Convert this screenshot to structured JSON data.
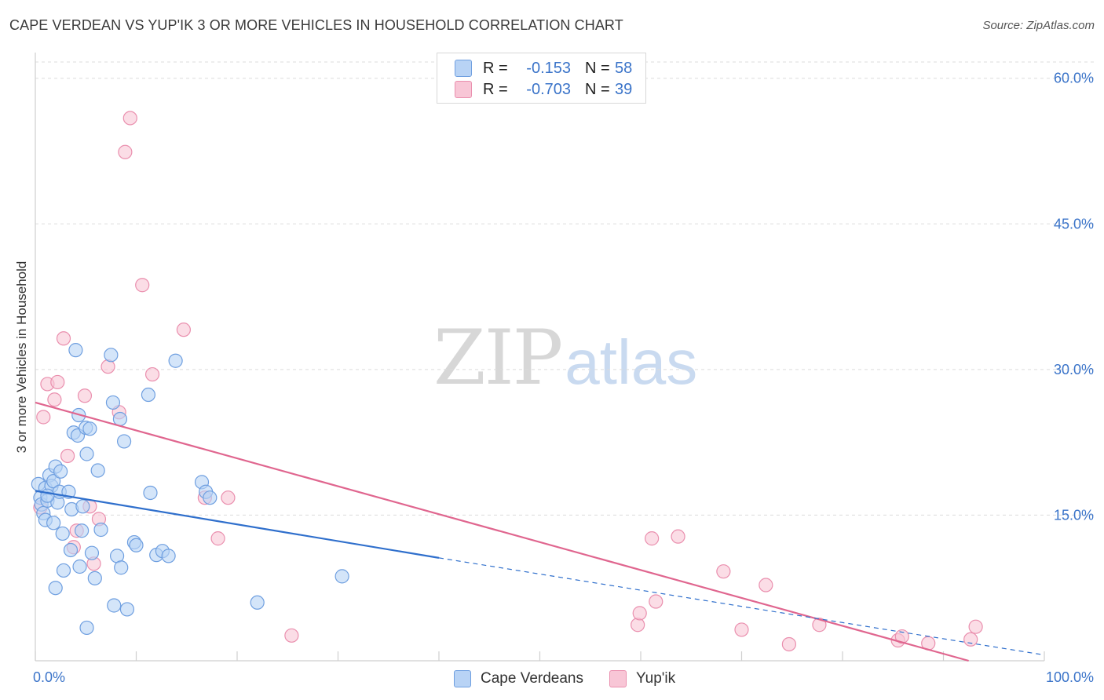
{
  "header": {
    "title": "CAPE VERDEAN VS YUP'IK 3 OR MORE VEHICLES IN HOUSEHOLD CORRELATION CHART",
    "source": "Source: ZipAtlas.com"
  },
  "watermark": {
    "zip": "ZIP",
    "atlas": "atlas"
  },
  "legend": {
    "items": [
      {
        "r_label": "R =",
        "r_value": "-0.153",
        "n_label": "N =",
        "n_value": "58"
      },
      {
        "r_label": "R =",
        "r_value": "-0.703",
        "n_label": "N =",
        "n_value": "39"
      }
    ]
  },
  "bottom_legend": {
    "series1": "Cape Verdeans",
    "series2": "Yup'ik"
  },
  "colors": {
    "blue_fill": "#b8d3f5",
    "blue_stroke": "#6f9fe0",
    "blue_line": "#2f6fcc",
    "pink_fill": "#f8c6d6",
    "pink_stroke": "#ea8fae",
    "pink_line": "#e0668f",
    "grid": "#dcdcdc",
    "tick_text": "#3b74c9"
  },
  "chart_data": {
    "type": "scatter",
    "title": "CAPE VERDEAN VS YUP'IK 3 OR MORE VEHICLES IN HOUSEHOLD CORRELATION CHART",
    "xlabel": "",
    "ylabel": "3 or more Vehicles in Household",
    "xlim": [
      0,
      100
    ],
    "ylim": [
      0,
      62
    ],
    "x_tick_labels": [
      "0.0%",
      "100.0%"
    ],
    "y_ticks": [
      15,
      30,
      45,
      60
    ],
    "y_tick_labels": [
      "15.0%",
      "30.0%",
      "45.0%",
      "60.0%"
    ],
    "grid": true,
    "legend_position": "top-center",
    "series": [
      {
        "name": "Cape Verdeans",
        "r": -0.153,
        "n": 58,
        "trend": {
          "x0": 0,
          "y0": 17.5,
          "x1": 40,
          "y1": 10.6,
          "dash_to_x": 100,
          "dash_to_y": 0.6
        },
        "points": [
          [
            0.3,
            18.2
          ],
          [
            0.5,
            16.8
          ],
          [
            0.6,
            16.1
          ],
          [
            0.8,
            15.2
          ],
          [
            1.0,
            14.5
          ],
          [
            1.0,
            17.8
          ],
          [
            1.2,
            16.5
          ],
          [
            1.4,
            19.1
          ],
          [
            1.6,
            18.0
          ],
          [
            1.8,
            14.2
          ],
          [
            1.8,
            18.5
          ],
          [
            2.0,
            20.0
          ],
          [
            2.2,
            16.3
          ],
          [
            2.4,
            17.4
          ],
          [
            2.5,
            19.5
          ],
          [
            2.7,
            13.1
          ],
          [
            2.8,
            9.3
          ],
          [
            3.3,
            17.4
          ],
          [
            3.5,
            11.4
          ],
          [
            3.6,
            15.6
          ],
          [
            3.8,
            23.5
          ],
          [
            4.0,
            32.0
          ],
          [
            4.2,
            23.2
          ],
          [
            4.3,
            25.3
          ],
          [
            4.4,
            9.7
          ],
          [
            4.6,
            13.4
          ],
          [
            4.7,
            15.9
          ],
          [
            5.0,
            24.0
          ],
          [
            5.1,
            21.3
          ],
          [
            5.4,
            23.9
          ],
          [
            5.6,
            11.1
          ],
          [
            5.9,
            8.5
          ],
          [
            6.2,
            19.6
          ],
          [
            6.5,
            13.5
          ],
          [
            7.5,
            31.5
          ],
          [
            7.7,
            26.6
          ],
          [
            7.8,
            5.7
          ],
          [
            8.1,
            10.8
          ],
          [
            8.4,
            24.9
          ],
          [
            8.5,
            9.6
          ],
          [
            8.8,
            22.6
          ],
          [
            9.1,
            5.3
          ],
          [
            9.8,
            12.2
          ],
          [
            10.0,
            11.9
          ],
          [
            11.2,
            27.4
          ],
          [
            11.4,
            17.3
          ],
          [
            12.0,
            10.9
          ],
          [
            12.6,
            11.3
          ],
          [
            13.2,
            10.8
          ],
          [
            13.9,
            30.9
          ],
          [
            16.5,
            18.4
          ],
          [
            16.9,
            17.4
          ],
          [
            17.3,
            16.8
          ],
          [
            22.0,
            6.0
          ],
          [
            30.4,
            8.7
          ],
          [
            2.0,
            7.5
          ],
          [
            5.1,
            3.4
          ],
          [
            1.2,
            17.0
          ]
        ]
      },
      {
        "name": "Yup'ik",
        "r": -0.703,
        "n": 39,
        "trend": {
          "x0": 0,
          "y0": 26.6,
          "x1": 92.5,
          "y1": 0
        },
        "points": [
          [
            0.5,
            15.8
          ],
          [
            0.8,
            25.1
          ],
          [
            1.2,
            28.5
          ],
          [
            1.9,
            26.9
          ],
          [
            2.2,
            28.7
          ],
          [
            2.8,
            33.2
          ],
          [
            3.2,
            21.1
          ],
          [
            3.8,
            11.7
          ],
          [
            4.1,
            13.4
          ],
          [
            4.9,
            27.3
          ],
          [
            5.4,
            15.9
          ],
          [
            5.8,
            10.0
          ],
          [
            6.3,
            14.6
          ],
          [
            7.2,
            30.3
          ],
          [
            8.3,
            25.6
          ],
          [
            8.9,
            52.4
          ],
          [
            9.4,
            55.9
          ],
          [
            10.6,
            38.7
          ],
          [
            11.6,
            29.5
          ],
          [
            14.7,
            34.1
          ],
          [
            16.8,
            16.8
          ],
          [
            18.1,
            12.6
          ],
          [
            19.1,
            16.8
          ],
          [
            25.4,
            2.6
          ],
          [
            59.7,
            3.7
          ],
          [
            59.9,
            4.9
          ],
          [
            61.5,
            6.1
          ],
          [
            61.1,
            12.6
          ],
          [
            63.7,
            12.8
          ],
          [
            68.2,
            9.2
          ],
          [
            70.0,
            3.2
          ],
          [
            72.4,
            7.8
          ],
          [
            74.7,
            1.7
          ],
          [
            77.7,
            3.7
          ],
          [
            85.5,
            2.1
          ],
          [
            85.9,
            2.5
          ],
          [
            88.5,
            1.8
          ],
          [
            92.7,
            2.2
          ],
          [
            93.2,
            3.5
          ]
        ]
      }
    ]
  }
}
